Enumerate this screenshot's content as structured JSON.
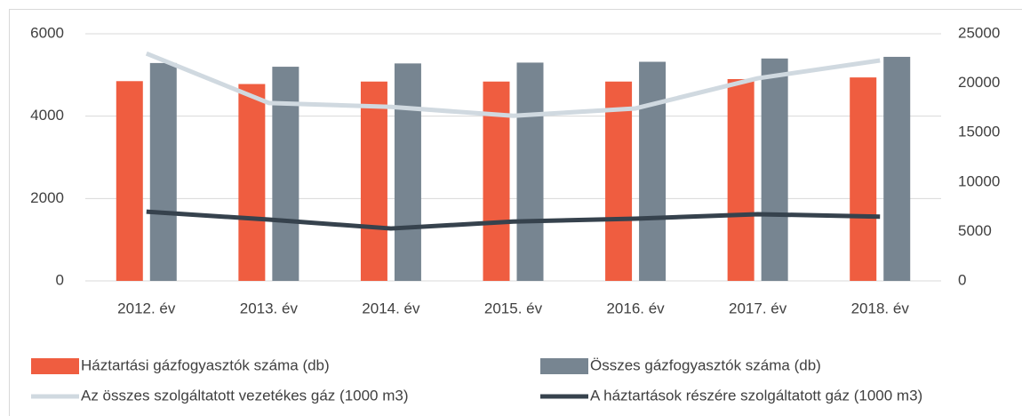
{
  "chart_data": {
    "type": "bar",
    "categories": [
      "2012. év",
      "2013. év",
      "2014. év",
      "2015. év",
      "2016. év",
      "2017. év",
      "2018. év"
    ],
    "series": [
      {
        "name": "Háztartási gázfogyasztók száma (db)",
        "type": "bar",
        "color": "#ef5d40",
        "values": [
          4850,
          4780,
          4840,
          4840,
          4840,
          4900,
          4940
        ]
      },
      {
        "name": "Összes gázfogyasztók száma (db)",
        "type": "bar",
        "color": "#778591",
        "values": [
          5290,
          5200,
          5280,
          5300,
          5320,
          5400,
          5440
        ]
      },
      {
        "name": "Az összes szolgáltatott vezetékes gáz (1000 m3)",
        "type": "line",
        "axis": "y2",
        "color": "#d0d9e0",
        "values": [
          23000,
          18000,
          17600,
          16700,
          17450,
          20500,
          22300
        ]
      },
      {
        "name": "A háztartások részére szolgáltatott gáz (1000 m3)",
        "type": "line",
        "axis": "y2",
        "color": "#36424d",
        "values": [
          7000,
          6200,
          5300,
          6000,
          6300,
          6750,
          6500
        ]
      }
    ],
    "ylim": [
      0,
      6000
    ],
    "yticks": [
      0,
      2000,
      4000,
      6000
    ],
    "y2lim": [
      0,
      25000
    ],
    "y2ticks": [
      0,
      5000,
      10000,
      15000,
      20000,
      25000
    ],
    "grid": true,
    "legend": "bottom"
  }
}
